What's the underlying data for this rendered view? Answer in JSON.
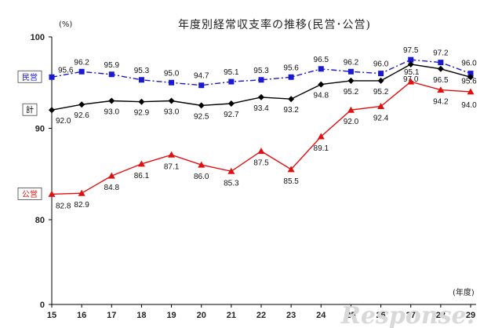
{
  "chart_data": {
    "type": "line",
    "title": "年度別経常収支率の推移(民営･公営)",
    "ylabel": "(%)",
    "xlabel": "(年度)",
    "ylim": [
      0,
      100
    ],
    "yticks": [
      0,
      80,
      90,
      100
    ],
    "categories": [
      "15",
      "16",
      "17",
      "18",
      "19",
      "20",
      "21",
      "22",
      "23",
      "24",
      "25",
      "26",
      "27",
      "28",
      "29"
    ],
    "series": [
      {
        "name": "民営",
        "color": "#1a1ad0",
        "marker": "square",
        "dash": "dashdot",
        "values": [
          95.6,
          96.2,
          95.9,
          95.3,
          95.0,
          94.7,
          95.1,
          95.3,
          95.6,
          96.5,
          96.2,
          96.0,
          97.5,
          97.2,
          96.0
        ],
        "labels": [
          "95.6",
          "96.2",
          "95.9",
          "95.3",
          "95.0",
          "94.7",
          "95.1",
          "95.3",
          "95.6",
          "96.5",
          "96.2",
          "96.0",
          "97.5",
          "97.2",
          "96.0"
        ]
      },
      {
        "name": "計",
        "color": "#000000",
        "marker": "diamond",
        "dash": "solid",
        "values": [
          92.0,
          92.6,
          93.0,
          92.9,
          93.0,
          92.5,
          92.7,
          93.4,
          93.2,
          94.8,
          95.2,
          95.2,
          97.0,
          96.5,
          95.6
        ],
        "labels": [
          "92.0",
          "92.6",
          "93.0",
          "92.9",
          "93.0",
          "92.5",
          "92.7",
          "93.4",
          "93.2",
          "94.8",
          "95.2",
          "95.2",
          "97.0",
          "96.5",
          "95.6"
        ]
      },
      {
        "name": "公営",
        "color": "#e01010",
        "marker": "triangle",
        "dash": "solid",
        "values": [
          82.8,
          82.9,
          84.8,
          86.1,
          87.1,
          86.0,
          85.3,
          87.5,
          85.5,
          89.1,
          92.0,
          92.4,
          95.1,
          94.2,
          94.0
        ],
        "labels": [
          "82.8",
          "82.9",
          "84.8",
          "86.1",
          "87.1",
          "86.0",
          "85.3",
          "87.5",
          "85.5",
          "89.1",
          "92.0",
          "92.4",
          "95.1",
          "94.2",
          "94.0"
        ]
      }
    ],
    "legend": [
      {
        "name": "民営",
        "color": "#1a1ad0"
      },
      {
        "name": "計",
        "color": "#000000"
      },
      {
        "name": "公営",
        "color": "#e01010"
      }
    ]
  },
  "watermark": "Response."
}
